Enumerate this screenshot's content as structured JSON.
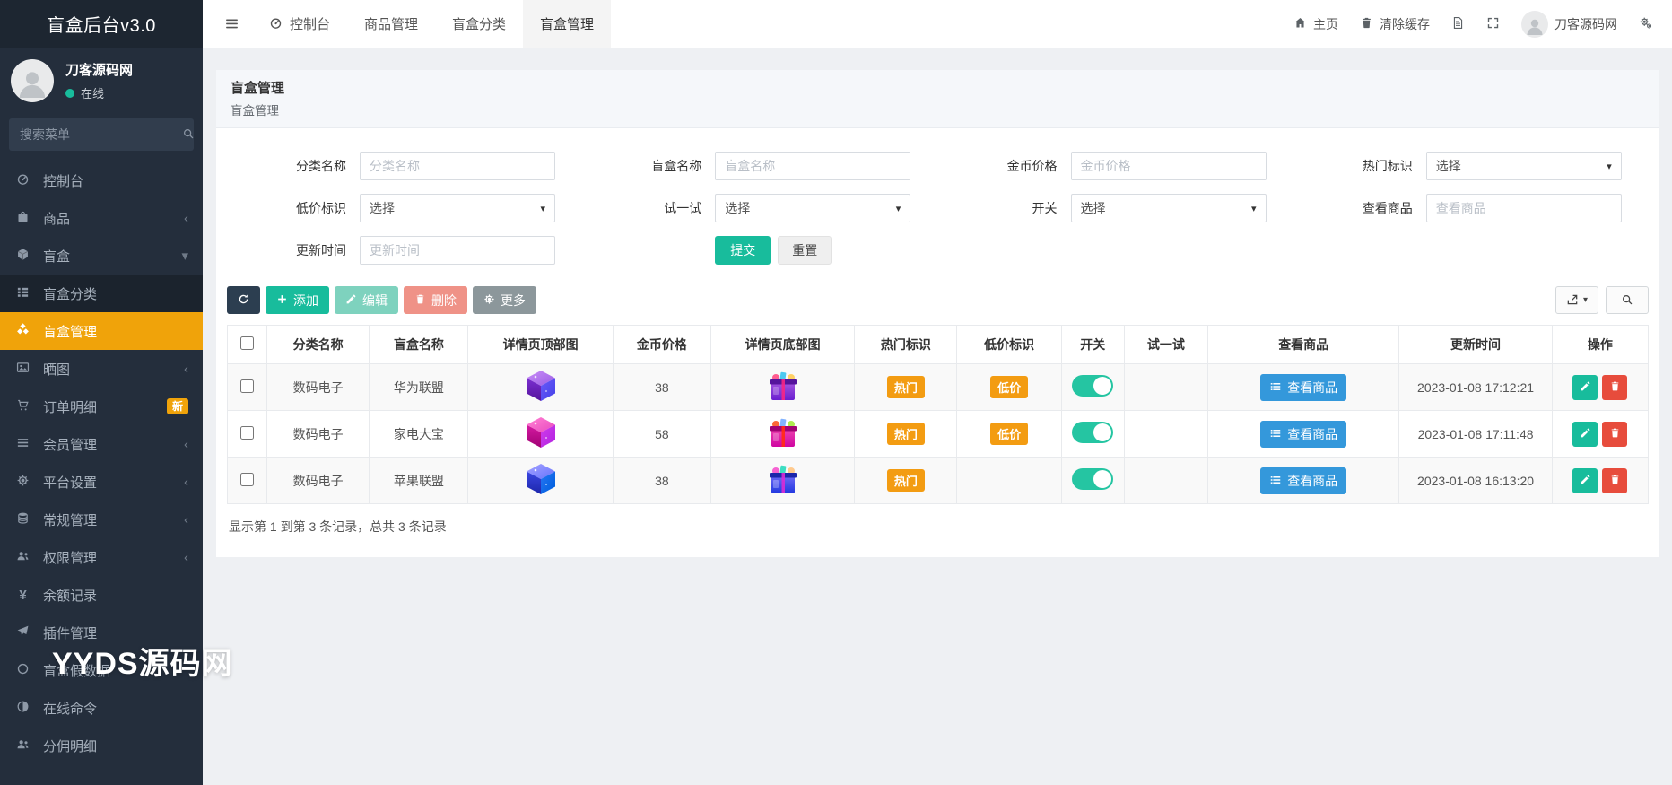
{
  "app": {
    "title": "盲盒后台v3.0",
    "watermark": "YYDS源码网"
  },
  "colors": {
    "accent_orange": "#f0a30a",
    "badge_orange": "#f39c12",
    "teal": "#18bc9c",
    "blue": "#3498db",
    "red": "#e74c3c",
    "dark_navy": "#2c3e50",
    "gray_button": "#95a5a6"
  },
  "sidebar": {
    "user": {
      "name": "刀客源码网",
      "status": "在线"
    },
    "search_placeholder": "搜索菜单",
    "items": [
      {
        "key": "console",
        "label": "控制台",
        "icon": "dashboard-icon"
      },
      {
        "key": "goods",
        "label": "商品",
        "icon": "bag-icon",
        "chevron": "left"
      },
      {
        "key": "blindbox",
        "label": "盲盒",
        "icon": "cube-icon",
        "chevron": "down"
      },
      {
        "key": "blindbox-category",
        "label": "盲盒分类",
        "icon": "th-list-icon",
        "submenu": true
      },
      {
        "key": "blindbox-manage",
        "label": "盲盒管理",
        "icon": "cubes-icon",
        "submenu": true,
        "active": true
      },
      {
        "key": "photos",
        "label": "晒图",
        "icon": "photo-icon",
        "chevron": "left"
      },
      {
        "key": "orders",
        "label": "订单明细",
        "icon": "cart-icon",
        "badge": "新"
      },
      {
        "key": "members",
        "label": "会员管理",
        "icon": "list-icon",
        "chevron": "left"
      },
      {
        "key": "platform",
        "label": "平台设置",
        "icon": "gear-icon",
        "chevron": "left"
      },
      {
        "key": "general",
        "label": "常规管理",
        "icon": "database-icon",
        "chevron": "left"
      },
      {
        "key": "permissions",
        "label": "权限管理",
        "icon": "users-icon",
        "chevron": "left"
      },
      {
        "key": "balance",
        "label": "余额记录",
        "icon": "yen-icon"
      },
      {
        "key": "plugins",
        "label": "插件管理",
        "icon": "plane-icon"
      },
      {
        "key": "fake-data",
        "label": "盲盒假数据",
        "icon": "circle-icon"
      },
      {
        "key": "commands",
        "label": "在线命令",
        "icon": "adjust-icon"
      },
      {
        "key": "commission",
        "label": "分佣明细",
        "icon": "users-icon"
      }
    ]
  },
  "topbar": {
    "tabs": [
      {
        "key": "console",
        "label": "控制台",
        "icon": "dashboard-icon"
      },
      {
        "key": "goods-manage",
        "label": "商品管理"
      },
      {
        "key": "blindbox-category",
        "label": "盲盒分类"
      },
      {
        "key": "blindbox-manage",
        "label": "盲盒管理",
        "active": true
      }
    ],
    "home_label": "主页",
    "clear_cache_label": "清除缓存",
    "user_name": "刀客源码网"
  },
  "page": {
    "title": "盲盒管理",
    "subtitle": "盲盒管理"
  },
  "filter": {
    "fields": [
      {
        "key": "category-name",
        "label": "分类名称",
        "type": "input",
        "placeholder": "分类名称"
      },
      {
        "key": "box-name",
        "label": "盲盒名称",
        "type": "input",
        "placeholder": "盲盒名称"
      },
      {
        "key": "coin-price",
        "label": "金币价格",
        "type": "input",
        "placeholder": "金币价格"
      },
      {
        "key": "hot-flag",
        "label": "热门标识",
        "type": "select",
        "value": "选择"
      },
      {
        "key": "cheap-flag",
        "label": "低价标识",
        "type": "select",
        "value": "选择"
      },
      {
        "key": "try-it",
        "label": "试一试",
        "type": "select",
        "value": "选择"
      },
      {
        "key": "switch",
        "label": "开关",
        "type": "select",
        "value": "选择"
      },
      {
        "key": "view-goods",
        "label": "查看商品",
        "type": "input",
        "placeholder": "查看商品"
      },
      {
        "key": "update-time",
        "label": "更新时间",
        "type": "input",
        "placeholder": "更新时间"
      }
    ],
    "submit_label": "提交",
    "reset_label": "重置"
  },
  "toolbar": {
    "add_label": "添加",
    "edit_label": "编辑",
    "delete_label": "删除",
    "more_label": "更多"
  },
  "table": {
    "columns": [
      "分类名称",
      "盲盒名称",
      "详情页顶部图",
      "金币价格",
      "详情页底部图",
      "热门标识",
      "低价标识",
      "开关",
      "试一试",
      "查看商品",
      "更新时间",
      "操作"
    ],
    "hot_label": "热门",
    "cheap_label": "低价",
    "view_goods_label": "查看商品",
    "rows": [
      {
        "category": "数码电子",
        "name": "华为联盟",
        "price": "38",
        "hot": true,
        "cheap": true,
        "switch_on": true,
        "updated": "2023-01-08 17:12:21",
        "variant": 1
      },
      {
        "category": "数码电子",
        "name": "家电大宝",
        "price": "58",
        "hot": true,
        "cheap": true,
        "switch_on": true,
        "updated": "2023-01-08 17:11:48",
        "variant": 2
      },
      {
        "category": "数码电子",
        "name": "苹果联盟",
        "price": "38",
        "hot": true,
        "cheap": false,
        "switch_on": true,
        "updated": "2023-01-08 16:13:20",
        "variant": 3
      }
    ],
    "footer": "显示第 1 到第 3 条记录，总共 3 条记录"
  }
}
